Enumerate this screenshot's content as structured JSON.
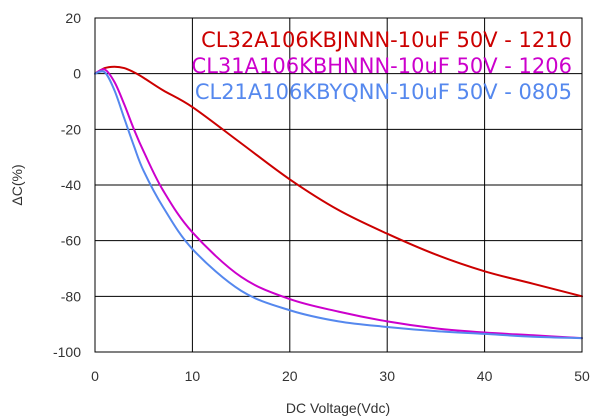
{
  "chart_data": {
    "type": "line",
    "title": "",
    "xlabel": "DC Voltage(Vdc)",
    "ylabel": "ΔC(%)",
    "xlim": [
      0,
      50
    ],
    "ylim": [
      -100,
      20
    ],
    "x_ticks": [
      0,
      10,
      20,
      30,
      40,
      50
    ],
    "y_ticks": [
      20,
      0,
      -20,
      -40,
      -60,
      -80,
      -100
    ],
    "grid": true,
    "legend_position": "top-right",
    "series": [
      {
        "name": "CL32A106KBJNNN-10uF 50V - 1210",
        "color": "#cc0000",
        "x": [
          0,
          1,
          2,
          3,
          4,
          5,
          7,
          10,
          15,
          20,
          25,
          30,
          35,
          40,
          45,
          50
        ],
        "y": [
          0,
          2,
          2.5,
          2,
          0.5,
          -1.5,
          -6,
          -12,
          -25,
          -38,
          -49,
          -57.5,
          -65,
          -71,
          -75.5,
          -80
        ]
      },
      {
        "name": "CL31A106KBHNNN-10uF 50V - 1206",
        "color": "#cc00cc",
        "x": [
          0,
          1,
          2,
          3,
          4,
          5,
          7,
          10,
          15,
          20,
          25,
          30,
          35,
          40,
          45,
          50
        ],
        "y": [
          0,
          1.5,
          -3,
          -11,
          -20,
          -28,
          -42,
          -57,
          -73,
          -81,
          -85.5,
          -89,
          -91.5,
          -93,
          -94,
          -95
        ]
      },
      {
        "name": "CL21A106KBYQNN-10uF 50V - 0805",
        "color": "#5588ee",
        "x": [
          0,
          1,
          2,
          3,
          4,
          5,
          7,
          10,
          15,
          20,
          25,
          30,
          35,
          40,
          45,
          50
        ],
        "y": [
          0,
          0.5,
          -6,
          -16,
          -26,
          -35,
          -48,
          -63,
          -78,
          -85,
          -89,
          -91,
          -92.5,
          -93.5,
          -94.5,
          -95
        ]
      }
    ]
  }
}
